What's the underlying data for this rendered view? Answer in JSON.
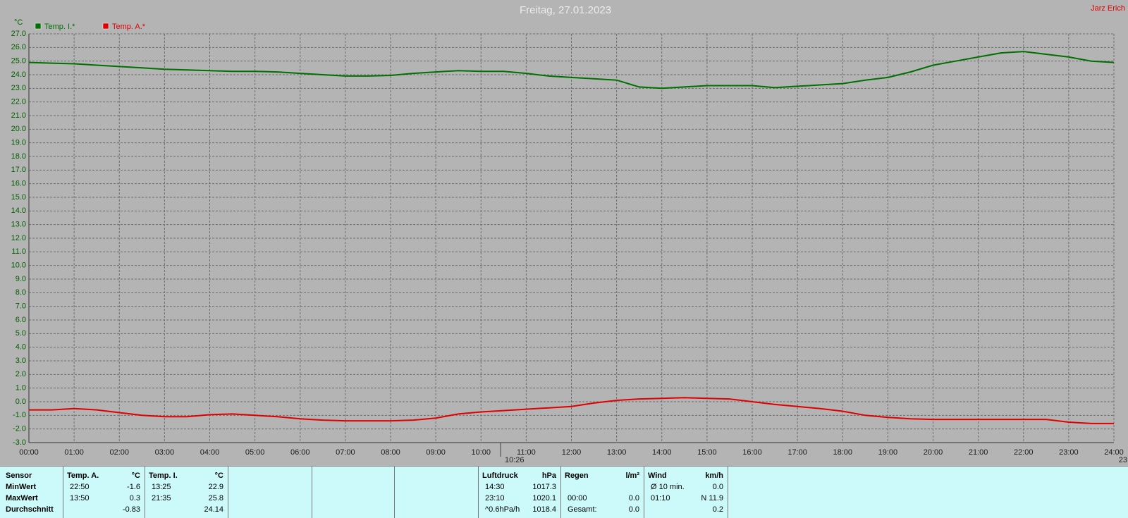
{
  "chart_data": {
    "type": "line",
    "title": "Freitag, 27.01.2023",
    "author": "Jarz Erich",
    "y_label": "°C",
    "markers": [
      "10:26",
      "23"
    ],
    "x": [
      0,
      0.5,
      1,
      1.5,
      2,
      2.5,
      3,
      3.5,
      4,
      4.5,
      5,
      5.5,
      6,
      6.5,
      7,
      7.5,
      8,
      8.5,
      9,
      9.5,
      10,
      10.5,
      11,
      11.5,
      12,
      12.5,
      13,
      13.5,
      14,
      14.5,
      15,
      15.5,
      16,
      16.5,
      17,
      17.5,
      18,
      18.5,
      19,
      19.5,
      20,
      20.5,
      21,
      21.5,
      22,
      22.5,
      23,
      23.5,
      24
    ],
    "series": [
      {
        "name": "Temp. I.*",
        "color": "#007000",
        "values": [
          24.9,
          24.85,
          24.8,
          24.7,
          24.6,
          24.5,
          24.4,
          24.35,
          24.3,
          24.25,
          24.25,
          24.2,
          24.1,
          24.0,
          23.9,
          23.9,
          23.95,
          24.1,
          24.2,
          24.3,
          24.25,
          24.25,
          24.1,
          23.9,
          23.8,
          23.7,
          23.6,
          23.1,
          23.0,
          23.1,
          23.2,
          23.2,
          23.2,
          23.05,
          23.15,
          23.25,
          23.35,
          23.6,
          23.8,
          24.2,
          24.7,
          25.0,
          25.3,
          25.6,
          25.7,
          25.5,
          25.3,
          25.0,
          24.9
        ]
      },
      {
        "name": "Temp. A.*",
        "color": "#e00000",
        "values": [
          -0.6,
          -0.6,
          -0.5,
          -0.6,
          -0.8,
          -1.0,
          -1.1,
          -1.1,
          -0.95,
          -0.9,
          -1.0,
          -1.1,
          -1.25,
          -1.35,
          -1.4,
          -1.4,
          -1.4,
          -1.35,
          -1.2,
          -0.9,
          -0.75,
          -0.65,
          -0.55,
          -0.45,
          -0.35,
          -0.1,
          0.1,
          0.2,
          0.25,
          0.3,
          0.25,
          0.2,
          0.0,
          -0.2,
          -0.35,
          -0.5,
          -0.7,
          -1.0,
          -1.15,
          -1.25,
          -1.3,
          -1.3,
          -1.3,
          -1.3,
          -1.3,
          -1.3,
          -1.5,
          -1.6,
          -1.6
        ]
      }
    ],
    "xlim": [
      0,
      24
    ],
    "xticks": [
      {
        "value": 0,
        "label": "00:00"
      },
      {
        "value": 1,
        "label": "01:00"
      },
      {
        "value": 2,
        "label": "02:00"
      },
      {
        "value": 3,
        "label": "03:00"
      },
      {
        "value": 4,
        "label": "04:00"
      },
      {
        "value": 5,
        "label": "05:00"
      },
      {
        "value": 6,
        "label": "06:00"
      },
      {
        "value": 7,
        "label": "07:00"
      },
      {
        "value": 8,
        "label": "08:00"
      },
      {
        "value": 9,
        "label": "09:00"
      },
      {
        "value": 10,
        "label": "10:00"
      },
      {
        "value": 11,
        "label": "11:00"
      },
      {
        "value": 12,
        "label": "12:00"
      },
      {
        "value": 13,
        "label": "13:00"
      },
      {
        "value": 14,
        "label": "14:00"
      },
      {
        "value": 15,
        "label": "15:00"
      },
      {
        "value": 16,
        "label": "16:00"
      },
      {
        "value": 17,
        "label": "17:00"
      },
      {
        "value": 18,
        "label": "18:00"
      },
      {
        "value": 19,
        "label": "19:00"
      },
      {
        "value": 20,
        "label": "20:00"
      },
      {
        "value": 21,
        "label": "21:00"
      },
      {
        "value": 22,
        "label": "22:00"
      },
      {
        "value": 23,
        "label": "23:00"
      },
      {
        "value": 24,
        "label": "24:00"
      }
    ],
    "ylim": [
      -3,
      27
    ],
    "yticks": [
      {
        "value": 27,
        "label": "27.0"
      },
      {
        "value": 26,
        "label": "26.0"
      },
      {
        "value": 25,
        "label": "25.0"
      },
      {
        "value": 24,
        "label": "24.0"
      },
      {
        "value": 23,
        "label": "23.0"
      },
      {
        "value": 22,
        "label": "22.0"
      },
      {
        "value": 21,
        "label": "21.0"
      },
      {
        "value": 20,
        "label": "20.0"
      },
      {
        "value": 19,
        "label": "19.0"
      },
      {
        "value": 18,
        "label": "18.0"
      },
      {
        "value": 17,
        "label": "17.0"
      },
      {
        "value": 16,
        "label": "16.0"
      },
      {
        "value": 15,
        "label": "15.0"
      },
      {
        "value": 14,
        "label": "14.0"
      },
      {
        "value": 13,
        "label": "13.0"
      },
      {
        "value": 12,
        "label": "12.0"
      },
      {
        "value": 11,
        "label": "11.0"
      },
      {
        "value": 10,
        "label": "10.0"
      },
      {
        "value": 9,
        "label": "9.0"
      },
      {
        "value": 8,
        "label": "8.0"
      },
      {
        "value": 7,
        "label": "7.0"
      },
      {
        "value": 6,
        "label": "6.0"
      },
      {
        "value": 5,
        "label": "5.0"
      },
      {
        "value": 4,
        "label": "4.0"
      },
      {
        "value": 3,
        "label": "3.0"
      },
      {
        "value": 2,
        "label": "2.0"
      },
      {
        "value": 1,
        "label": "1.0"
      },
      {
        "value": 0,
        "label": "0.0"
      },
      {
        "value": -1,
        "label": "-1.0"
      },
      {
        "value": -2,
        "label": "-2.0"
      },
      {
        "value": -3,
        "label": "-3.0"
      }
    ],
    "grid": true,
    "legend": "top-left"
  },
  "stats": {
    "row_labels": [
      "Sensor",
      "MinWert",
      "MaxWert",
      "Durchschnitt"
    ],
    "groups": [
      {
        "name": "Temp. A.",
        "unit": "°C",
        "rows": [
          [
            "22:50",
            "-1.6"
          ],
          [
            "13:50",
            "0.3"
          ],
          [
            null,
            "-0.83"
          ]
        ]
      },
      {
        "name": "Temp. I.",
        "unit": "°C",
        "rows": [
          [
            "13:25",
            "22.9"
          ],
          [
            "21:35",
            "25.8"
          ],
          [
            null,
            "24.14"
          ]
        ]
      },
      {
        "name": "Luftdruck",
        "unit": "hPa",
        "rows": [
          [
            "14:30",
            "1017.3"
          ],
          [
            "23:10",
            "1020.1"
          ],
          [
            "^0.6hPa/h",
            "1018.4"
          ]
        ]
      },
      {
        "name": "Regen",
        "unit": "l/m²",
        "rows": [
          [
            null,
            null
          ],
          [
            "00:00",
            "0.0"
          ],
          [
            "Gesamt:",
            "0.0"
          ]
        ]
      },
      {
        "name": "Wind",
        "unit": "km/h",
        "rows": [
          [
            "Ø 10 min.",
            "0.0"
          ],
          [
            "01:10",
            "N 11.9"
          ],
          [
            null,
            "0.2"
          ]
        ]
      }
    ]
  }
}
